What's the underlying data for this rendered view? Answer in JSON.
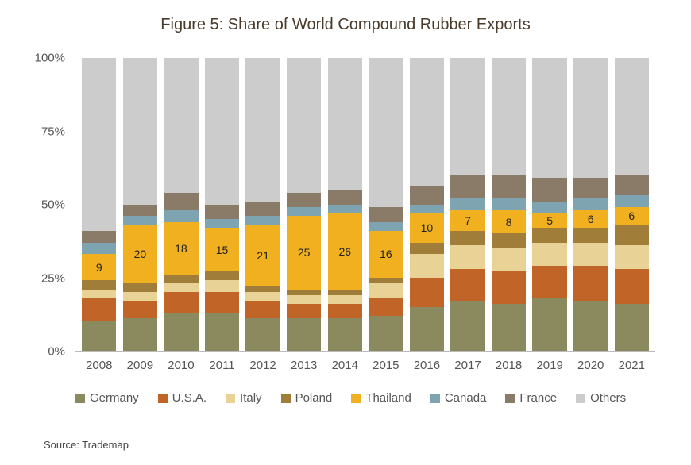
{
  "chart": {
    "type": "stacked-bar-100pct",
    "title": "Figure 5: Share of World Compound Rubber Exports",
    "title_fontsize": 20,
    "title_color": "#4a3a2a",
    "background_color": "#ffffff",
    "ylim": [
      0,
      100
    ],
    "yticks": [
      0,
      25,
      50,
      75,
      100
    ],
    "ytick_suffix": "%",
    "categories": [
      "2008",
      "2009",
      "2010",
      "2011",
      "2012",
      "2013",
      "2014",
      "2015",
      "2016",
      "2017",
      "2018",
      "2019",
      "2020",
      "2021"
    ],
    "series": [
      {
        "name": "Germany",
        "color": "#8a8a5e"
      },
      {
        "name": "U.S.A.",
        "color": "#c06428"
      },
      {
        "name": "Italy",
        "color": "#e8d296"
      },
      {
        "name": "Poland",
        "color": "#a07e3a"
      },
      {
        "name": "Thailand",
        "color": "#f0b020"
      },
      {
        "name": "Canada",
        "color": "#7da4b0"
      },
      {
        "name": "France",
        "color": "#8a7a68"
      },
      {
        "name": "Others",
        "color": "#cccccc"
      }
    ],
    "data": {
      "2008": {
        "Germany": 10,
        "U.S.A.": 8,
        "Italy": 3,
        "Poland": 3,
        "Thailand": 9,
        "Canada": 4,
        "France": 4,
        "Others": 59
      },
      "2009": {
        "Germany": 11,
        "U.S.A.": 6,
        "Italy": 3,
        "Poland": 3,
        "Thailand": 20,
        "Canada": 3,
        "France": 4,
        "Others": 50
      },
      "2010": {
        "Germany": 13,
        "U.S.A.": 7,
        "Italy": 3,
        "Poland": 3,
        "Thailand": 18,
        "Canada": 4,
        "France": 6,
        "Others": 46
      },
      "2011": {
        "Germany": 13,
        "U.S.A.": 7,
        "Italy": 4,
        "Poland": 3,
        "Thailand": 15,
        "Canada": 3,
        "France": 5,
        "Others": 50
      },
      "2012": {
        "Germany": 11,
        "U.S.A.": 6,
        "Italy": 3,
        "Poland": 2,
        "Thailand": 21,
        "Canada": 3,
        "France": 5,
        "Others": 49
      },
      "2013": {
        "Germany": 11,
        "U.S.A.": 5,
        "Italy": 3,
        "Poland": 2,
        "Thailand": 25,
        "Canada": 3,
        "France": 5,
        "Others": 46
      },
      "2014": {
        "Germany": 11,
        "U.S.A.": 5,
        "Italy": 3,
        "Poland": 2,
        "Thailand": 26,
        "Canada": 3,
        "France": 5,
        "Others": 45
      },
      "2015": {
        "Germany": 12,
        "U.S.A.": 6,
        "Italy": 5,
        "Poland": 2,
        "Thailand": 16,
        "Canada": 3,
        "France": 5,
        "Others": 51
      },
      "2016": {
        "Germany": 15,
        "U.S.A.": 10,
        "Italy": 8,
        "Poland": 4,
        "Thailand": 10,
        "Canada": 3,
        "France": 6,
        "Others": 44
      },
      "2017": {
        "Germany": 17,
        "U.S.A.": 11,
        "Italy": 8,
        "Poland": 5,
        "Thailand": 7,
        "Canada": 4,
        "France": 8,
        "Others": 40
      },
      "2018": {
        "Germany": 16,
        "U.S.A.": 11,
        "Italy": 8,
        "Poland": 5,
        "Thailand": 8,
        "Canada": 4,
        "France": 8,
        "Others": 40
      },
      "2019": {
        "Germany": 18,
        "U.S.A.": 11,
        "Italy": 8,
        "Poland": 5,
        "Thailand": 5,
        "Canada": 4,
        "France": 8,
        "Others": 41
      },
      "2020": {
        "Germany": 17,
        "U.S.A.": 12,
        "Italy": 8,
        "Poland": 5,
        "Thailand": 6,
        "Canada": 4,
        "France": 7,
        "Others": 41
      },
      "2021": {
        "Germany": 16,
        "U.S.A.": 12,
        "Italy": 8,
        "Poland": 7,
        "Thailand": 6,
        "Canada": 4,
        "France": 7,
        "Others": 40
      }
    },
    "labeled_series": "Thailand",
    "bar_labels": {
      "2008": "9",
      "2009": "20",
      "2010": "18",
      "2011": "15",
      "2012": "21",
      "2013": "25",
      "2014": "26",
      "2015": "16",
      "2016": "10",
      "2017": "7",
      "2018": "8",
      "2019": "5",
      "2020": "6",
      "2021": "6"
    },
    "bar_width": 0.84,
    "axis_fontsize": 15,
    "legend_fontsize": 15,
    "source": "Source: Trademap"
  }
}
